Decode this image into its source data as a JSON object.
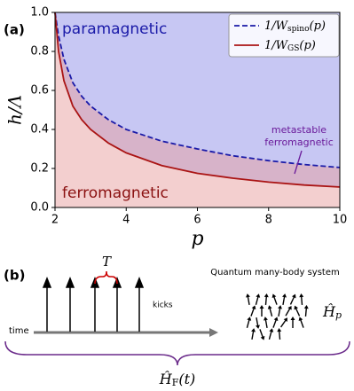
{
  "chart_data": {
    "type": "line",
    "panel_label": "(a)",
    "xlabel": "p",
    "ylabel": "h/Λ",
    "x": [
      2,
      2.1,
      2.25,
      2.5,
      2.75,
      3,
      3.5,
      4,
      5,
      6,
      7,
      8,
      9,
      10
    ],
    "series": [
      {
        "name": "1/Wspino(p)",
        "color": "#1a1aa8",
        "dash": true,
        "fill": "#8f8fe8",
        "values": [
          1.0,
          0.88,
          0.76,
          0.64,
          0.57,
          0.52,
          0.45,
          0.4,
          0.34,
          0.3,
          0.265,
          0.24,
          0.22,
          0.205
        ]
      },
      {
        "name": "1/WGS(p)",
        "color": "#aa1414",
        "dash": false,
        "fill": "#e8a0a0",
        "values": [
          1.0,
          0.8,
          0.65,
          0.52,
          0.45,
          0.4,
          0.33,
          0.28,
          0.215,
          0.175,
          0.15,
          0.13,
          0.115,
          0.105
        ]
      }
    ],
    "annotations": {
      "para": "paramagnetic",
      "ferro": "ferromagnetic",
      "meta1": "metastable",
      "meta2": "ferromagnetic"
    },
    "xlim": [
      2,
      10
    ],
    "ylim": [
      0,
      1
    ],
    "xticks": [
      2,
      4,
      6,
      8,
      10
    ],
    "yticks": [
      {
        "value": 0,
        "label": "0.0"
      },
      {
        "value": 0.2,
        "label": "0.2"
      },
      {
        "value": 0.4,
        "label": "0.4"
      },
      {
        "value": 0.6,
        "label": "0.6"
      },
      {
        "value": 0.8,
        "label": "0.8"
      },
      {
        "value": 1,
        "label": "1.0"
      }
    ],
    "legend": "upper right"
  },
  "diagram": {
    "panel_label": "(b)",
    "period": "T",
    "kicks": "kicks",
    "time": "time",
    "system": "Quantum many-body system",
    "hp": {
      "base": "Ĥ",
      "sub": "p"
    },
    "hf": {
      "base": "Ĥ",
      "sub": "F",
      "tail": "(t)"
    }
  }
}
